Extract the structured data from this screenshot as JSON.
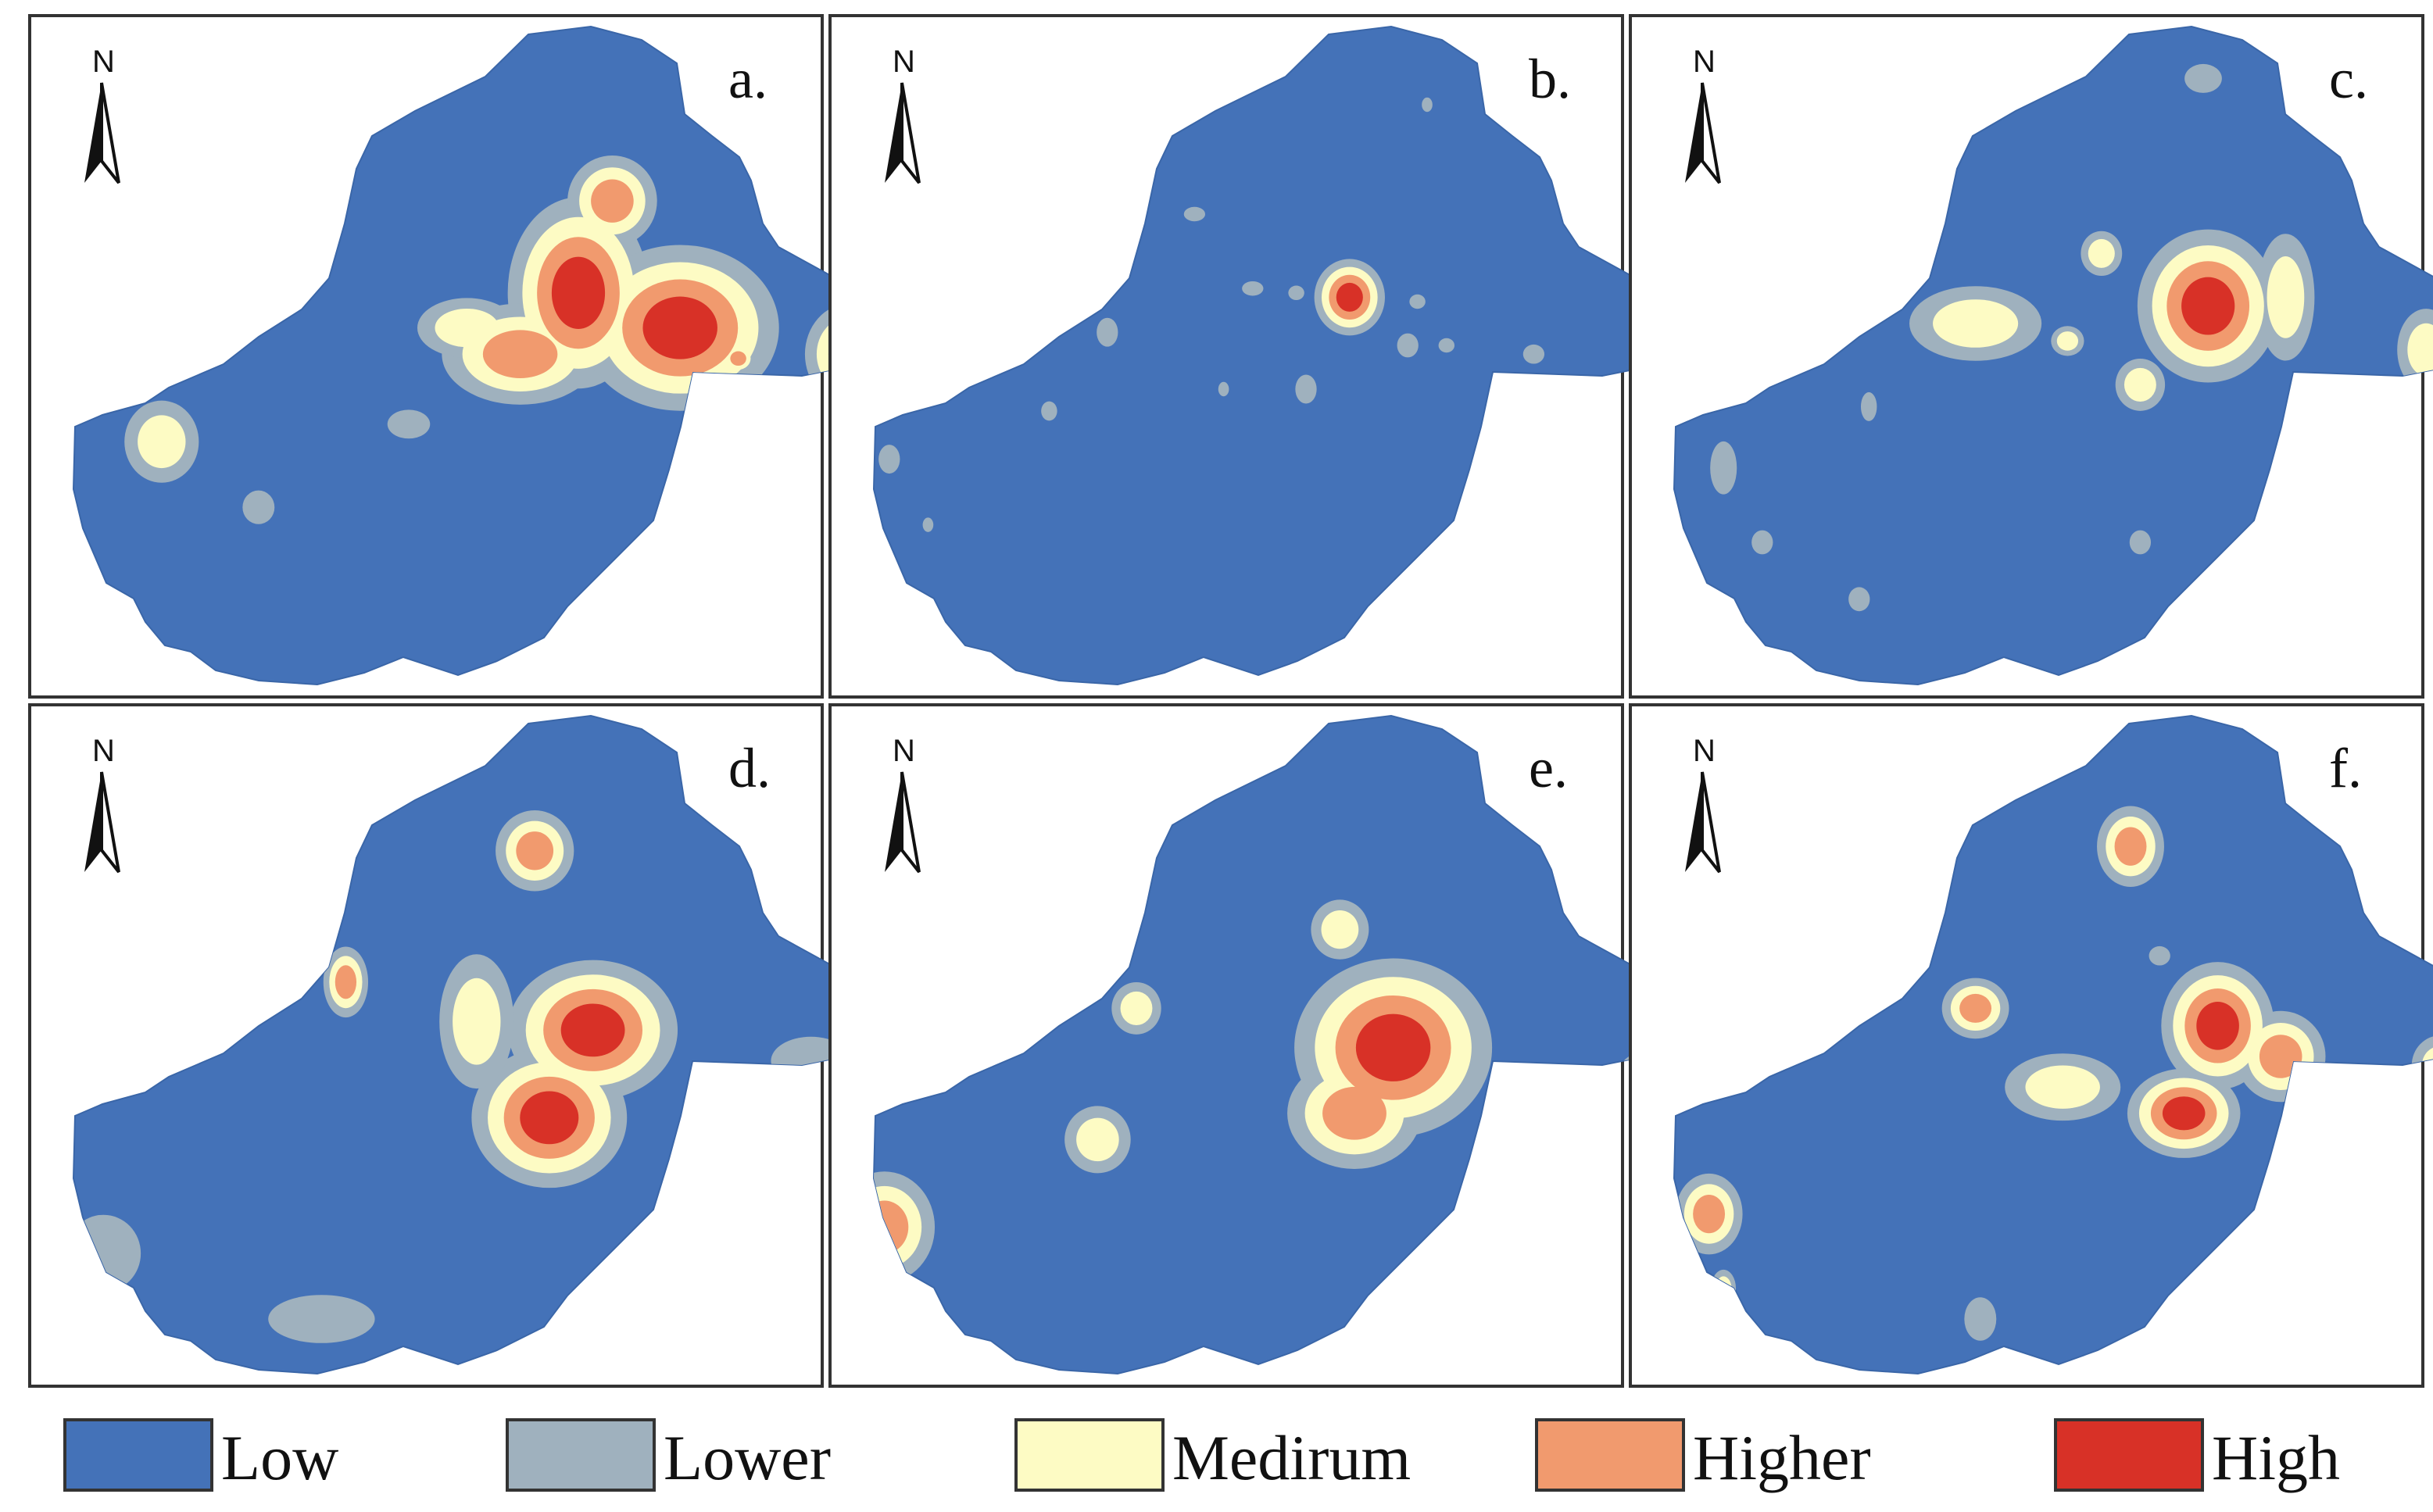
{
  "figure": {
    "north_label": "N",
    "panels": [
      {
        "label": "a.",
        "hotspots": [
          {
            "x": 2,
            "y": 5.2,
            "lv": 4,
            "rx": 1,
            "ry": 1.5
          },
          {
            "x": 4.1,
            "y": 4.4,
            "lv": 4,
            "rx": 1.4,
            "ry": 1.3
          },
          {
            "x": 0.8,
            "y": 3.8,
            "lv": 3,
            "rx": 1.4,
            "ry": 1
          },
          {
            "x": -0.3,
            "y": 4.4,
            "lv": 2,
            "rx": 1.2,
            "ry": 0.8
          },
          {
            "x": 2.7,
            "y": 7.3,
            "lv": 3,
            "rx": 0.8,
            "ry": 0.9
          },
          {
            "x": 7.6,
            "y": 3.8,
            "lv": 3,
            "rx": 0.8,
            "ry": 1
          },
          {
            "x": -6.6,
            "y": 1.8,
            "lv": 2,
            "rx": 0.9,
            "ry": 1.1
          },
          {
            "x": 5.3,
            "y": 3.7,
            "lv": 3,
            "rx": 0.3,
            "ry": 0.3
          },
          {
            "x": -1.5,
            "y": 2.2,
            "lv": 1,
            "rx": 0.8,
            "ry": 0.6
          },
          {
            "x": -4.6,
            "y": 0.3,
            "lv": 1,
            "rx": 0.6,
            "ry": 0.7
          }
        ]
      },
      {
        "label": "b.",
        "hotspots": [
          {
            "x": 1.4,
            "y": 5.1,
            "lv": 4,
            "rx": 0.5,
            "ry": 0.6
          },
          {
            "x": -0.6,
            "y": 5.3,
            "lv": 1,
            "rx": 0.4,
            "ry": 0.3
          },
          {
            "x": 0.3,
            "y": 5.2,
            "lv": 1,
            "rx": 0.3,
            "ry": 0.3
          },
          {
            "x": 2.8,
            "y": 5,
            "lv": 1,
            "rx": 0.3,
            "ry": 0.3
          },
          {
            "x": 2.6,
            "y": 4,
            "lv": 1,
            "rx": 0.4,
            "ry": 0.5
          },
          {
            "x": 3.4,
            "y": 4,
            "lv": 1,
            "rx": 0.3,
            "ry": 0.3
          },
          {
            "x": 0.5,
            "y": 3,
            "lv": 1,
            "rx": 0.4,
            "ry": 0.6
          },
          {
            "x": -1.8,
            "y": 7,
            "lv": 1,
            "rx": 0.4,
            "ry": 0.3
          },
          {
            "x": 5.2,
            "y": 3.8,
            "lv": 1,
            "rx": 0.4,
            "ry": 0.4
          },
          {
            "x": -3.6,
            "y": 4.3,
            "lv": 1,
            "rx": 0.4,
            "ry": 0.6
          },
          {
            "x": -4.8,
            "y": 2.5,
            "lv": 1,
            "rx": 0.3,
            "ry": 0.4
          },
          {
            "x": -1.2,
            "y": 3,
            "lv": 1,
            "rx": 0.2,
            "ry": 0.3
          },
          {
            "x": -8.1,
            "y": 1.4,
            "lv": 1,
            "rx": 0.4,
            "ry": 0.6
          },
          {
            "x": -7.3,
            "y": -0.1,
            "lv": 1,
            "rx": 0.2,
            "ry": 0.3
          },
          {
            "x": 3,
            "y": 9.5,
            "lv": 1,
            "rx": 0.2,
            "ry": 0.3
          }
        ]
      },
      {
        "label": "c.",
        "hotspots": [
          {
            "x": 2.6,
            "y": 4.9,
            "lv": 4,
            "rx": 1,
            "ry": 1.2
          },
          {
            "x": -2.2,
            "y": 4.5,
            "lv": 2,
            "rx": 1.6,
            "ry": 1
          },
          {
            "x": 0.4,
            "y": 6.1,
            "lv": 2,
            "rx": 0.5,
            "ry": 0.6
          },
          {
            "x": 4.2,
            "y": 5.1,
            "lv": 2,
            "rx": 0.7,
            "ry": 1.7
          },
          {
            "x": 1.2,
            "y": 3.1,
            "lv": 2,
            "rx": 0.6,
            "ry": 0.7
          },
          {
            "x": -0.3,
            "y": 4.1,
            "lv": 2,
            "rx": 0.4,
            "ry": 0.4
          },
          {
            "x": 7.1,
            "y": 3.9,
            "lv": 2,
            "rx": 0.7,
            "ry": 1.1
          },
          {
            "x": -4.4,
            "y": 2.6,
            "lv": 1,
            "rx": 0.3,
            "ry": 0.6
          },
          {
            "x": -7.4,
            "y": 1.2,
            "lv": 1,
            "rx": 0.5,
            "ry": 1.1
          },
          {
            "x": -6.6,
            "y": -0.5,
            "lv": 1,
            "rx": 0.4,
            "ry": 0.5
          },
          {
            "x": 1.2,
            "y": -0.5,
            "lv": 1,
            "rx": 0.4,
            "ry": 0.5
          },
          {
            "x": -4.6,
            "y": -1.8,
            "lv": 1,
            "rx": 0.4,
            "ry": 0.5
          },
          {
            "x": 2.5,
            "y": 10.1,
            "lv": 1,
            "rx": 0.7,
            "ry": 0.6
          }
        ]
      },
      {
        "label": "d.",
        "hotspots": [
          {
            "x": 2.3,
            "y": 4.1,
            "lv": 4,
            "rx": 1.2,
            "ry": 1.1
          },
          {
            "x": 1.4,
            "y": 2.1,
            "lv": 4,
            "rx": 1.1,
            "ry": 1.1
          },
          {
            "x": -0.1,
            "y": 4.3,
            "lv": 2,
            "rx": 0.9,
            "ry": 1.8
          },
          {
            "x": 1.1,
            "y": 8.2,
            "lv": 3,
            "rx": 0.7,
            "ry": 0.8
          },
          {
            "x": -2.8,
            "y": 5.2,
            "lv": 3,
            "rx": 0.4,
            "ry": 0.7
          },
          {
            "x": 6.8,
            "y": 3.4,
            "lv": 1,
            "rx": 1.5,
            "ry": 1
          },
          {
            "x": -7.8,
            "y": -1,
            "lv": 1,
            "rx": 1.4,
            "ry": 1.6
          },
          {
            "x": -3.3,
            "y": -2.5,
            "lv": 1,
            "rx": 2,
            "ry": 1
          },
          {
            "x": 0.5,
            "y": -3.6,
            "lv": 1,
            "rx": 0.5,
            "ry": 0.5
          }
        ]
      },
      {
        "label": "e.",
        "hotspots": [
          {
            "x": 2.3,
            "y": 3.7,
            "lv": 4,
            "rx": 1.4,
            "ry": 1.4
          },
          {
            "x": 1.5,
            "y": 2.2,
            "lv": 3,
            "rx": 1.2,
            "ry": 1.1
          },
          {
            "x": 1.2,
            "y": 6.4,
            "lv": 2,
            "rx": 0.7,
            "ry": 0.8
          },
          {
            "x": -3,
            "y": 4.6,
            "lv": 2,
            "rx": 0.6,
            "ry": 0.7
          },
          {
            "x": -3.8,
            "y": 1.6,
            "lv": 2,
            "rx": 0.8,
            "ry": 0.9
          },
          {
            "x": 7.6,
            "y": 2.8,
            "lv": 2,
            "rx": 0.9,
            "ry": 1
          },
          {
            "x": -8.2,
            "y": -0.4,
            "lv": 3,
            "rx": 0.9,
            "ry": 1.1
          }
        ]
      },
      {
        "label": "f.",
        "hotspots": [
          {
            "x": 2.8,
            "y": 4.2,
            "lv": 4,
            "rx": 0.8,
            "ry": 1
          },
          {
            "x": 2.1,
            "y": 2.2,
            "lv": 4,
            "rx": 0.8,
            "ry": 0.7
          },
          {
            "x": 4.1,
            "y": 3.5,
            "lv": 3,
            "rx": 0.8,
            "ry": 0.9
          },
          {
            "x": -0.4,
            "y": 2.8,
            "lv": 2,
            "rx": 1.4,
            "ry": 0.9
          },
          {
            "x": -2.2,
            "y": 4.6,
            "lv": 3,
            "rx": 0.6,
            "ry": 0.6
          },
          {
            "x": 1,
            "y": 8.3,
            "lv": 3,
            "rx": 0.6,
            "ry": 0.8
          },
          {
            "x": 7.4,
            "y": 3.3,
            "lv": 2,
            "rx": 0.7,
            "ry": 0.8
          },
          {
            "x": -7.7,
            "y": -0.1,
            "lv": 3,
            "rx": 0.6,
            "ry": 0.8
          },
          {
            "x": -7.4,
            "y": -1.8,
            "lv": 2,
            "rx": 0.3,
            "ry": 0.5
          },
          {
            "x": -2.1,
            "y": -2.5,
            "lv": 1,
            "rx": 0.6,
            "ry": 0.9
          },
          {
            "x": 1.6,
            "y": 5.8,
            "lv": 1,
            "rx": 0.4,
            "ry": 0.4
          }
        ]
      }
    ]
  },
  "legend": [
    {
      "label": "Low",
      "color": "#4472b8"
    },
    {
      "label": "Lower",
      "color": "#9fb1be"
    },
    {
      "label": "Medirum",
      "color": "#fdfbc4"
    },
    {
      "label": "Higher",
      "color": "#f19a6e"
    },
    {
      "label": "High",
      "color": "#d83127"
    }
  ]
}
